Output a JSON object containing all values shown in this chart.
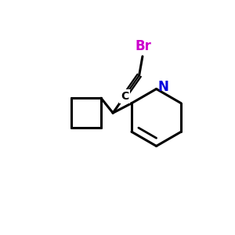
{
  "background_color": "#ffffff",
  "bond_color": "#000000",
  "bond_width": 2.2,
  "br_color": "#cc00cc",
  "n_color": "#0000dd",
  "c_color": "#000000",
  "br_label": "Br",
  "n_label": "N",
  "c_label": "C",
  "figsize": [
    3.0,
    3.0
  ],
  "dpi": 100
}
